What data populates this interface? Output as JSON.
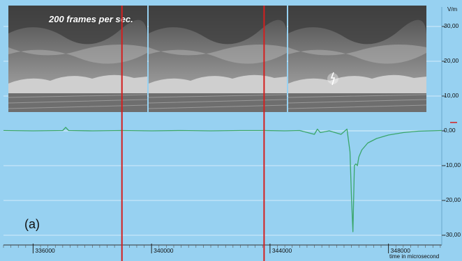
{
  "chart_data": {
    "type": "line",
    "panel_label": "(a)",
    "annotation": "200 frames per sec.",
    "ylabel": "V/m",
    "xlabel": "time in microsecond",
    "ylim": [
      -30,
      35
    ],
    "xlim": [
      335000,
      349800
    ],
    "yticks": [
      {
        "value": 30,
        "label": "30,00"
      },
      {
        "value": 20,
        "label": "20,00"
      },
      {
        "value": 10,
        "label": "10,00"
      },
      {
        "value": 0,
        "label": "0,00"
      },
      {
        "value": -10,
        "label": "-10,00"
      },
      {
        "value": -20,
        "label": "-20,00"
      },
      {
        "value": -30,
        "label": "-30,00"
      }
    ],
    "xticks": [
      {
        "value": 336000,
        "label": "336000"
      },
      {
        "value": 340000,
        "label": "340000"
      },
      {
        "value": 344000,
        "label": "344000"
      },
      {
        "value": 348000,
        "label": "348000"
      }
    ],
    "frame_markers": [
      339000,
      343800
    ],
    "series": [
      {
        "color": "#3aa66a",
        "x": [
          335000,
          336000,
          337000,
          337100,
          337200,
          338000,
          339000,
          340000,
          341000,
          342000,
          343000,
          343800,
          344500,
          345000,
          345500,
          345600,
          345700,
          346000,
          346400,
          346600,
          346700,
          346750,
          346800,
          346850,
          346900,
          346950,
          347000,
          347100,
          347300,
          347600,
          348000,
          348500,
          349000,
          349800
        ],
        "values": [
          0.1,
          0.0,
          0.1,
          1.0,
          0.1,
          0.0,
          0.1,
          0.0,
          0.1,
          0.0,
          0.1,
          0.1,
          0.0,
          0.1,
          -1.0,
          0.5,
          -0.5,
          0.0,
          -1.0,
          0.5,
          -6.0,
          -19.0,
          -29.0,
          -10.0,
          -9.5,
          -10.0,
          -7.5,
          -5.5,
          -3.5,
          -2.2,
          -1.2,
          -0.5,
          -0.1,
          0.1
        ]
      }
    ],
    "colors": {
      "background": "#97d1f1",
      "grid": "#d3ecfa",
      "marker": "#d41f1f",
      "trace": "#3aa66a"
    }
  }
}
